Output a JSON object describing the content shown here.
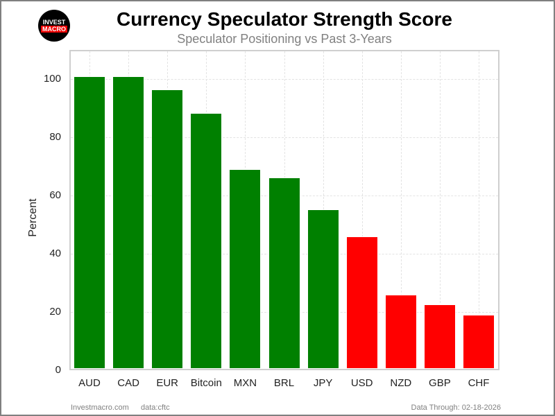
{
  "logo": {
    "line1": "INVEST",
    "line2": "MACRO"
  },
  "footer": {
    "site": "Investmacro.com",
    "source": "data:cftc",
    "data_through": "Data Through: 02-18-2026"
  },
  "colors": {
    "positive": "#008000",
    "negative": "#ff0000"
  },
  "chart_data": {
    "type": "bar",
    "title": "Currency Speculator Strength Score",
    "subtitle": "Speculator Positioning vs Past 3-Years",
    "xlabel": "",
    "ylabel": "Percent",
    "ylim": [
      0,
      110
    ],
    "yticks": [
      0,
      20,
      40,
      60,
      80,
      100
    ],
    "grid": true,
    "categories": [
      "AUD",
      "CAD",
      "EUR",
      "Bitcoin",
      "MXN",
      "BRL",
      "JPY",
      "USD",
      "NZD",
      "GBP",
      "CHF"
    ],
    "values": [
      100,
      100,
      95.4,
      87.4,
      68.1,
      65.2,
      54.3,
      45.0,
      25.0,
      21.7,
      18.1
    ],
    "bar_colors": [
      "#008000",
      "#008000",
      "#008000",
      "#008000",
      "#008000",
      "#008000",
      "#008000",
      "#ff0000",
      "#ff0000",
      "#ff0000",
      "#ff0000"
    ],
    "color_rule": "green if >= 50, red if < 50"
  }
}
